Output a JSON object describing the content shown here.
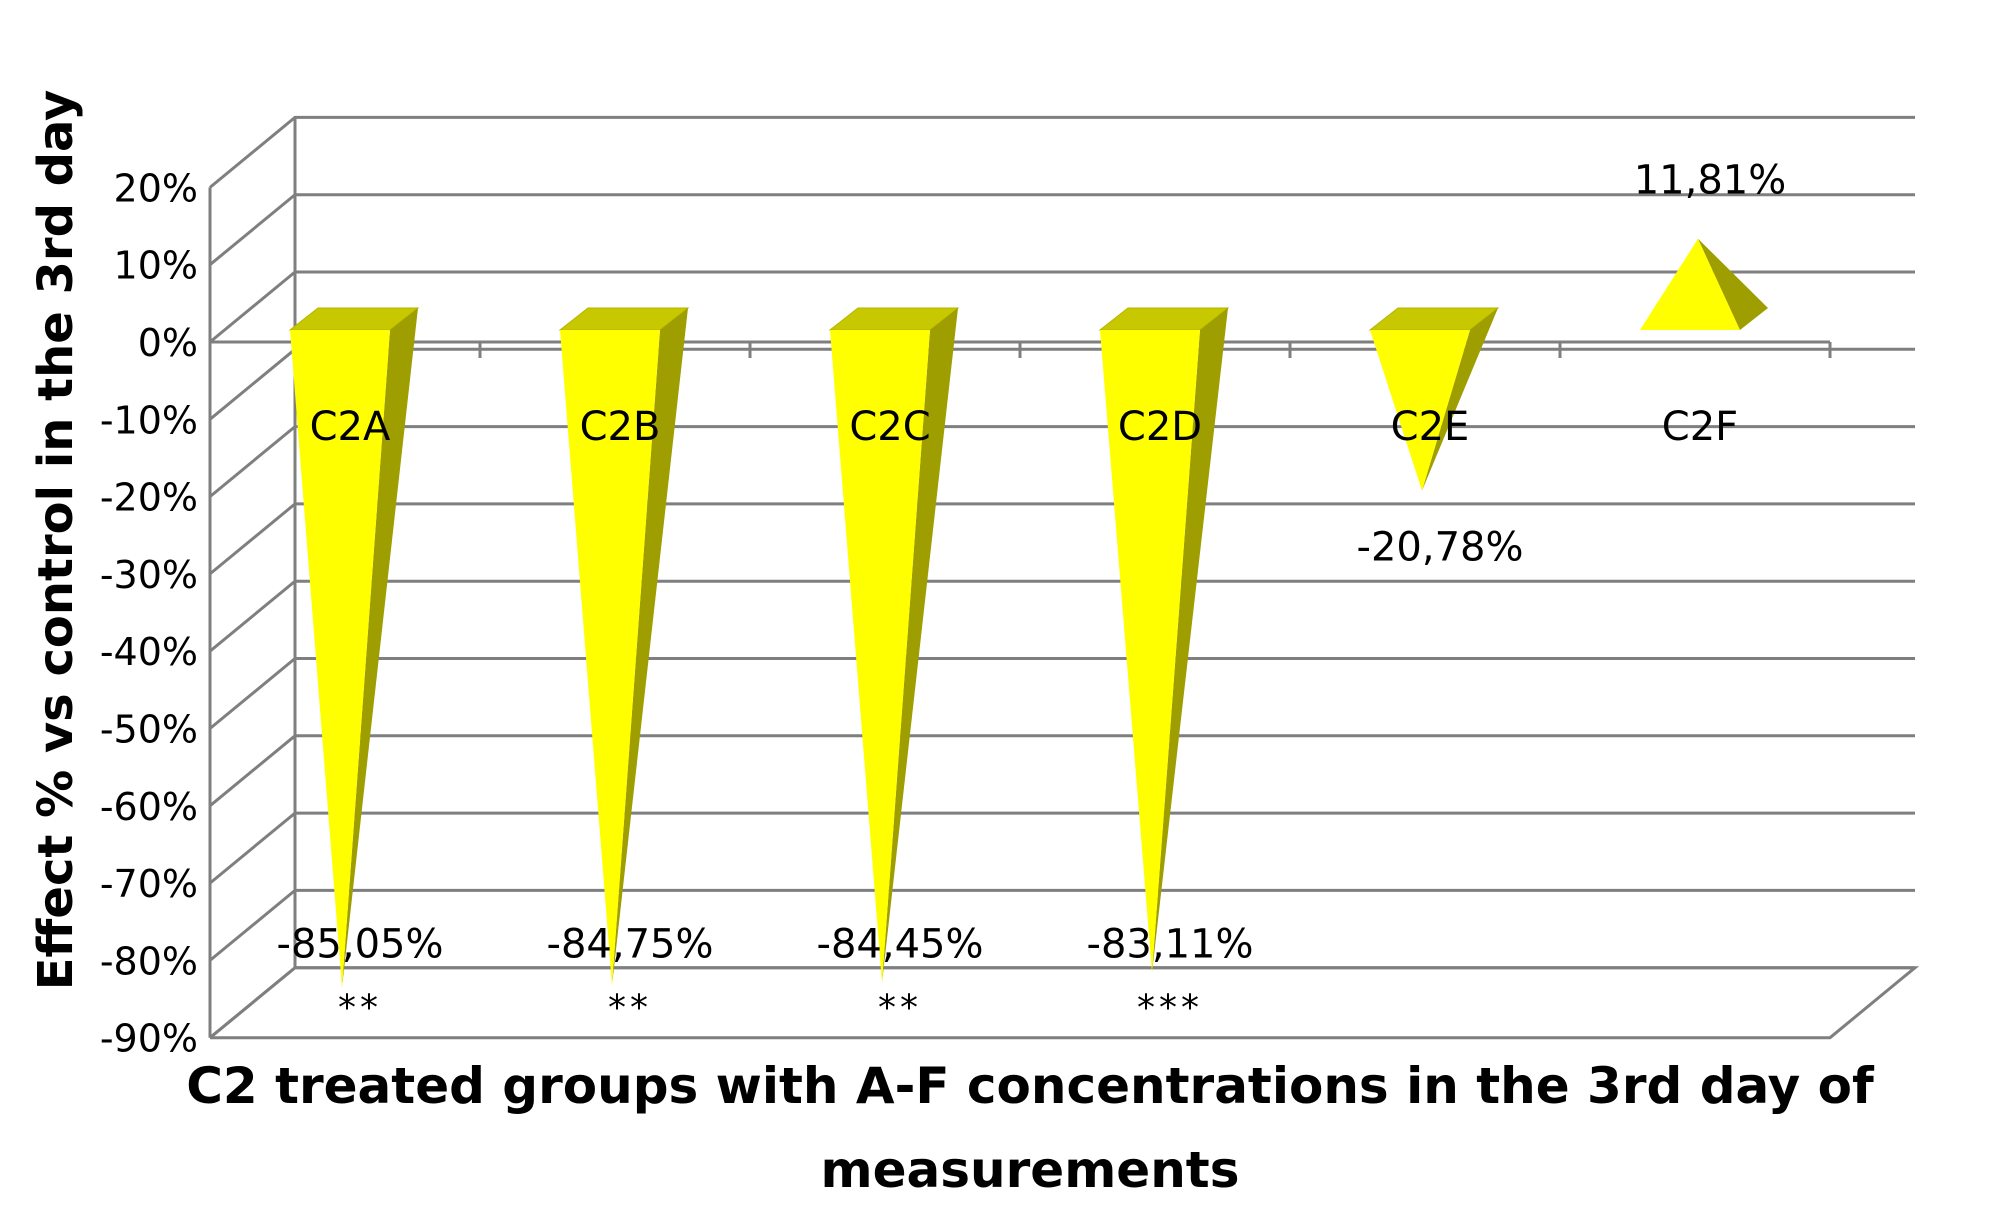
{
  "chart_data": {
    "type": "bar",
    "style": "3d-cone",
    "title": "",
    "xlabel": "C2 treated groups with A-F concentrations in the 3rd day of measurements",
    "ylabel": "Effect % vs control in the 3rd day",
    "ylim": [
      -90,
      20
    ],
    "y_ticks": [
      "20%",
      "10%",
      "0%",
      "-10%",
      "-20%",
      "-30%",
      "-40%",
      "-50%",
      "-60%",
      "-70%",
      "-80%",
      "-90%"
    ],
    "categories": [
      "C2A",
      "C2B",
      "C2C",
      "C2D",
      "C2E",
      "C2F"
    ],
    "values": [
      -85.05,
      -84.75,
      -84.45,
      -83.11,
      -20.78,
      11.81
    ],
    "data_labels": [
      "-85,05%",
      "-84,75%",
      "-84,45%",
      "-83,11%",
      "-20,78%",
      "11,81%"
    ],
    "significance": [
      "**",
      "**",
      "**",
      "***",
      "",
      ""
    ],
    "grid": true,
    "colors": {
      "front": "#FFFF00",
      "side": "#9E9E00",
      "top": "#C8C800",
      "grid": "#7F7F7F"
    }
  }
}
